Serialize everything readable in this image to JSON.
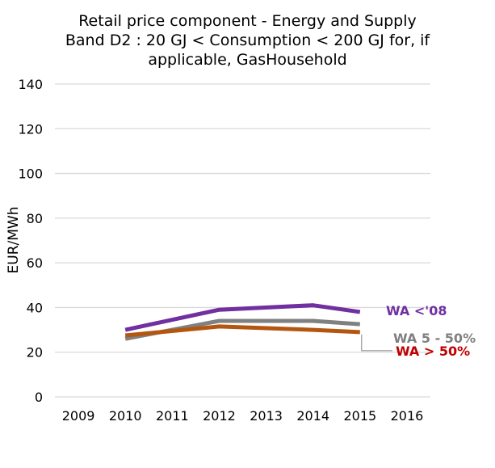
{
  "chart_data": {
    "type": "line",
    "title": "Retail price component - Energy and Supply",
    "subtitle_lines": [
      "Band D2 : 20 GJ < Consumption < 200 GJ for, if",
      "applicable, GasHousehold"
    ],
    "xlabel": "",
    "ylabel": "EUR/MWh",
    "ylim": [
      0,
      140
    ],
    "yticks": [
      0,
      20,
      40,
      60,
      80,
      100,
      120,
      140
    ],
    "categories": [
      "2009",
      "2010",
      "2011",
      "2012",
      "2013",
      "2014",
      "2015",
      "2016"
    ],
    "grid": true,
    "legend": "inline-right",
    "series": [
      {
        "name": "WA <'08",
        "color": "#7030a0",
        "values": [
          null,
          30,
          null,
          39,
          null,
          41,
          38,
          null
        ]
      },
      {
        "name": "WA 5 - 50%",
        "color": "#808080",
        "values": [
          null,
          26,
          null,
          34,
          null,
          34,
          32.5,
          null
        ]
      },
      {
        "name": "WA > 50%",
        "color": "#b4560f",
        "label_color": "#c00000",
        "values": [
          null,
          27.5,
          null,
          31.5,
          null,
          30,
          29,
          null
        ]
      }
    ]
  }
}
